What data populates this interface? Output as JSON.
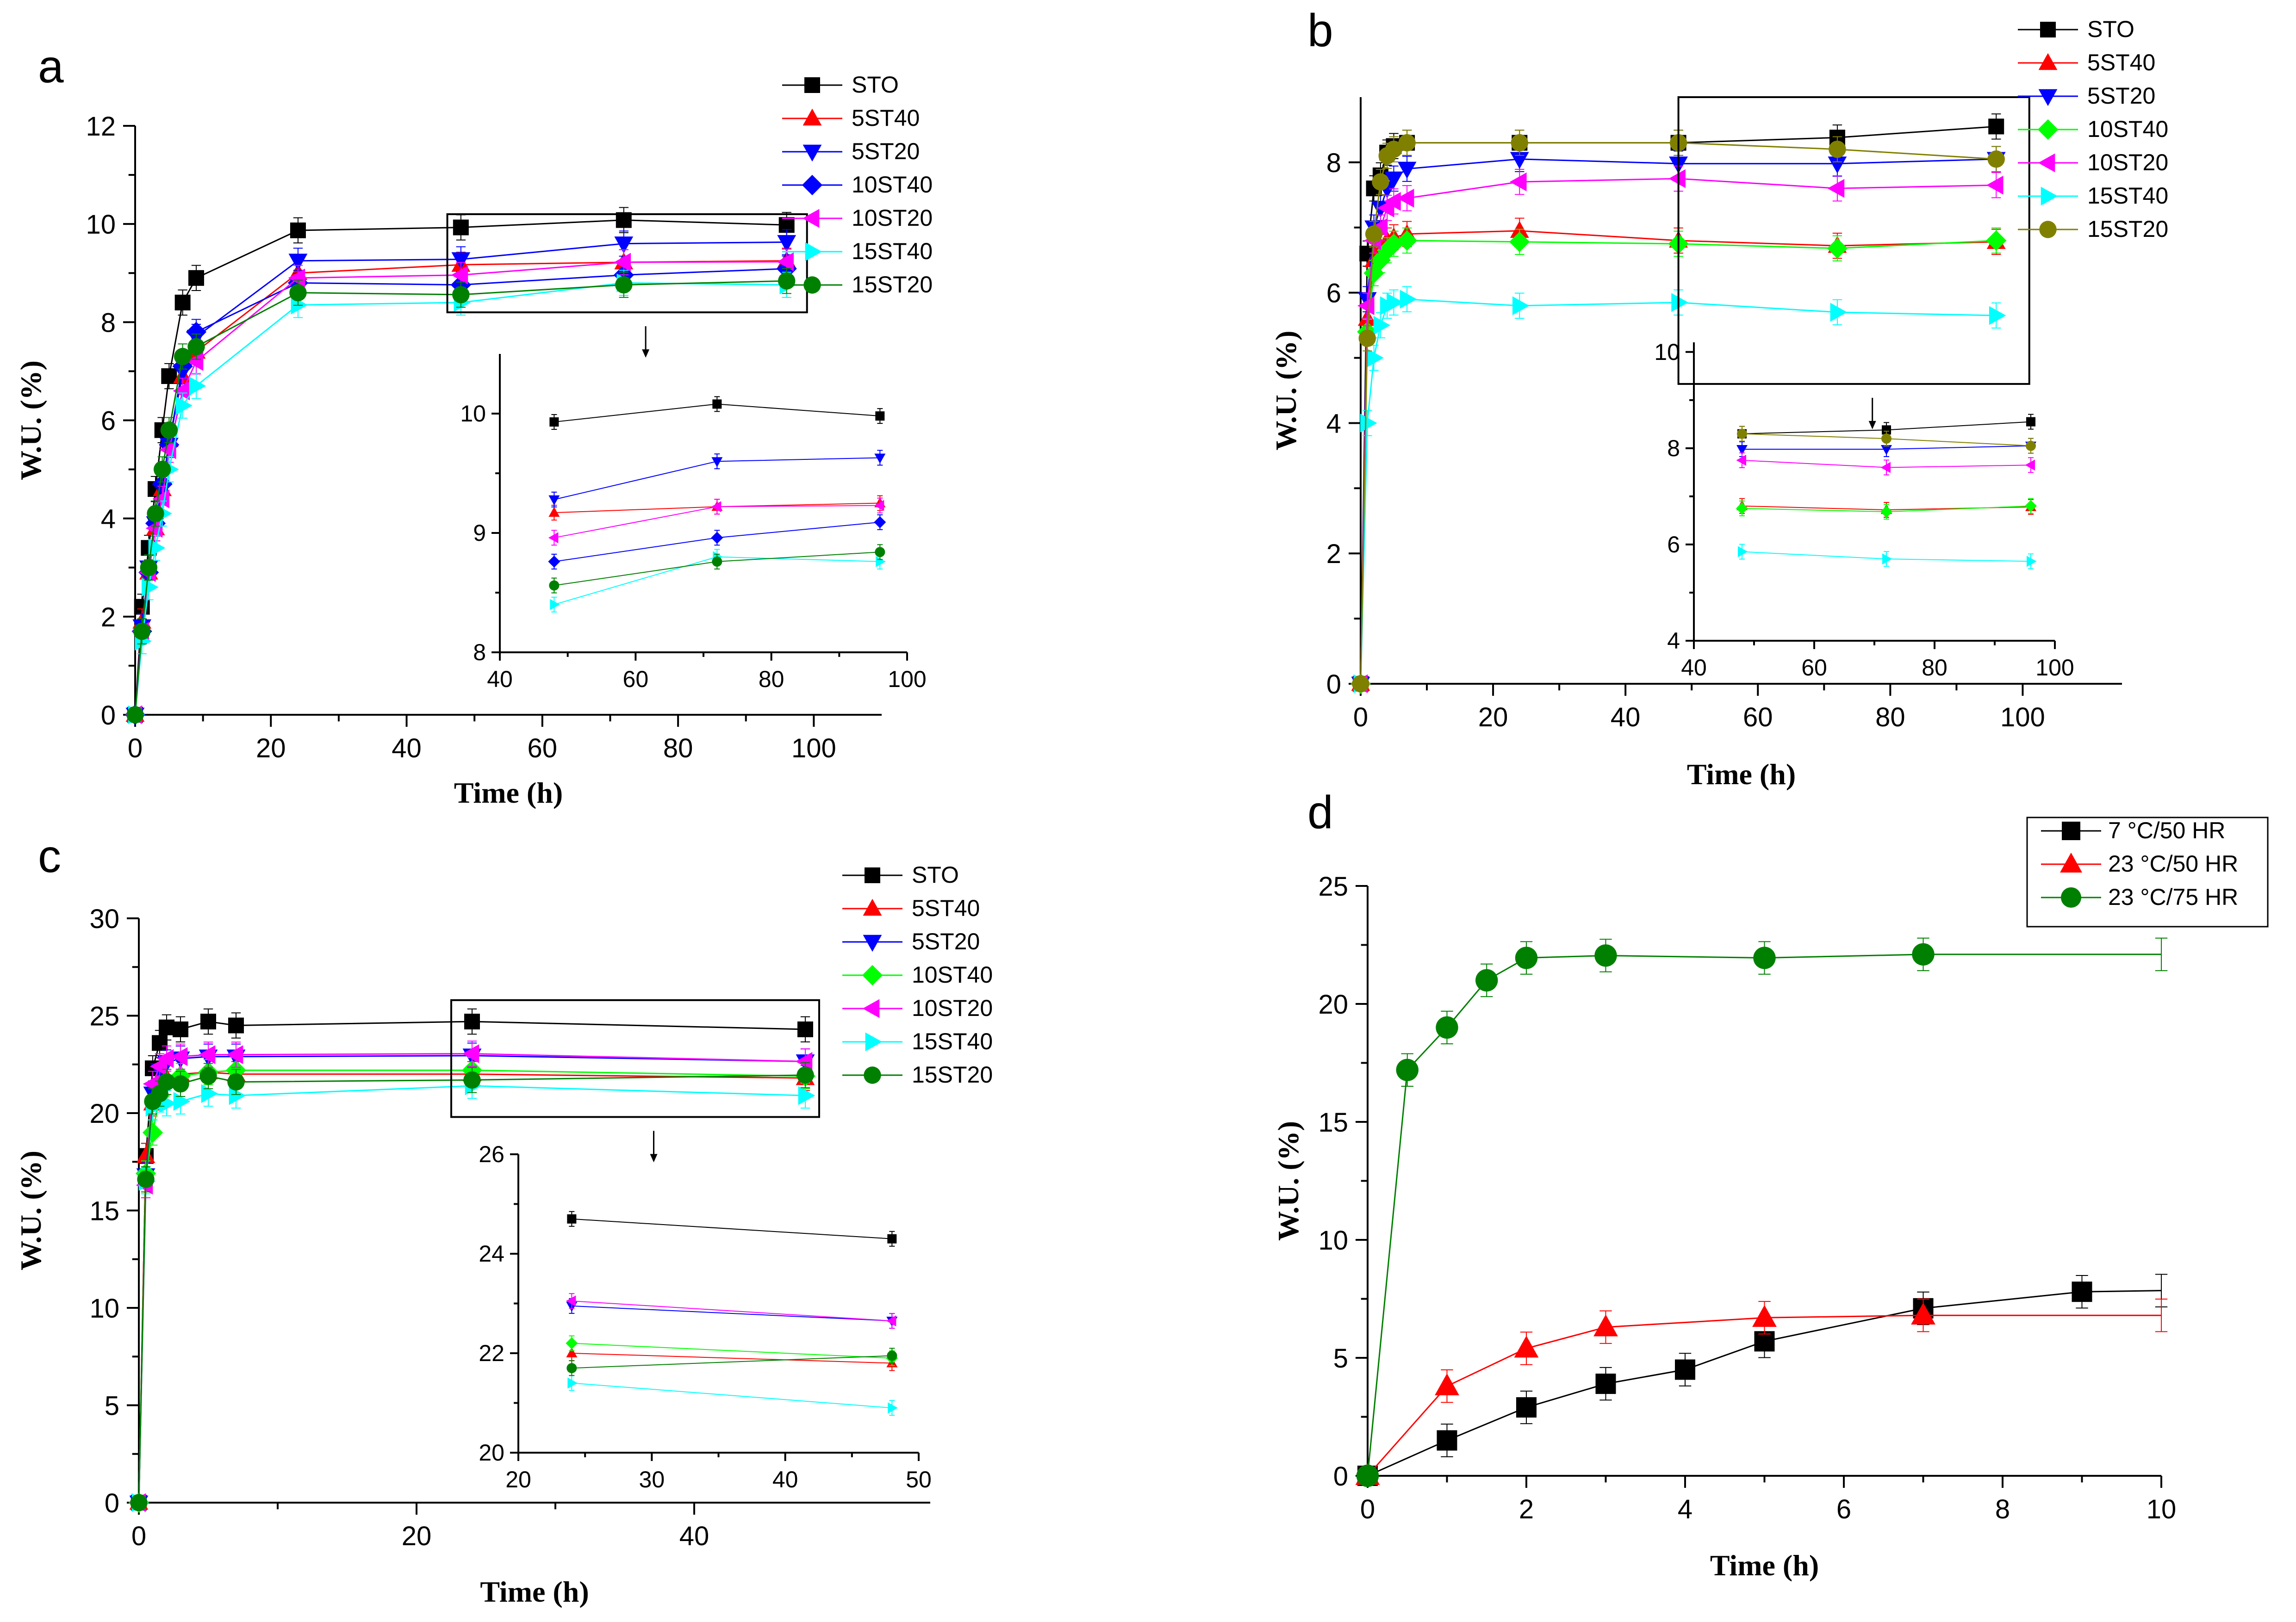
{
  "colors": {
    "STO": "#000000",
    "5ST40": "#ff0000",
    "5ST20": "#0000ff",
    "10ST40": "#00ff00",
    "10ST20": "#ff00ff",
    "15ST40": "#00ffff",
    "15ST20": "#008000",
    "15ST20_b": "#808000",
    "10ST40_a": "#0000ff",
    "Tdark": "#000000",
    "Tred": "#ff0000",
    "Tgreen": "#008000"
  },
  "chart_data": [
    {
      "id": "a",
      "type": "line",
      "panel_label": "a",
      "xlabel": "Time (h)",
      "ylabel": "W.U. (%)",
      "xlim": [
        0,
        110
      ],
      "ylim": [
        0,
        12
      ],
      "xticks": [
        "0",
        "20",
        "40",
        "60",
        "80",
        "100"
      ],
      "yticks": [
        "0",
        "2",
        "4",
        "6",
        "8",
        "10",
        "12"
      ],
      "xtick_values": [
        0,
        20,
        40,
        60,
        80,
        100
      ],
      "ytick_values": [
        0,
        2,
        4,
        6,
        8,
        10,
        12
      ],
      "legend": [
        "STO",
        "5ST40",
        "5ST20",
        "10ST40",
        "10ST20",
        "15ST40",
        "15ST20"
      ],
      "series": [
        {
          "name": "STO",
          "color": "#000000",
          "marker": "square",
          "x": [
            0,
            1,
            2,
            3,
            4,
            5,
            7,
            9,
            24,
            48,
            72,
            96
          ],
          "y": [
            0,
            2.2,
            3.4,
            4.6,
            5.8,
            6.9,
            8.4,
            8.9,
            9.87,
            9.93,
            10.08,
            9.98
          ]
        },
        {
          "name": "5ST40",
          "color": "#ff0000",
          "marker": "triangle-up",
          "x": [
            0,
            1,
            2,
            3,
            4,
            5,
            7,
            9,
            24,
            48,
            72,
            96
          ],
          "y": [
            0,
            1.9,
            2.9,
            3.8,
            4.6,
            5.6,
            6.9,
            7.4,
            9.0,
            9.17,
            9.22,
            9.25
          ]
        },
        {
          "name": "5ST20",
          "color": "#0000ff",
          "marker": "triangle-down",
          "x": [
            0,
            1,
            2,
            3,
            4,
            5,
            7,
            9,
            24,
            48,
            72,
            96
          ],
          "y": [
            0,
            1.8,
            3.0,
            3.9,
            4.6,
            5.5,
            7.0,
            7.7,
            9.25,
            9.28,
            9.6,
            9.63
          ]
        },
        {
          "name": "10ST40",
          "color": "#0000ff",
          "marker": "diamond",
          "x": [
            0,
            1,
            2,
            3,
            4,
            5,
            7,
            9,
            24,
            48,
            72,
            96
          ],
          "y": [
            0,
            1.7,
            2.9,
            3.9,
            4.7,
            5.5,
            7.1,
            7.8,
            8.8,
            8.76,
            8.96,
            9.09
          ]
        },
        {
          "name": "10ST20",
          "color": "#ff00ff",
          "marker": "triangle-left",
          "x": [
            0,
            1,
            2,
            3,
            4,
            5,
            7,
            9,
            24,
            48,
            72,
            96
          ],
          "y": [
            0,
            1.7,
            2.9,
            3.8,
            4.4,
            5.4,
            6.6,
            7.2,
            8.9,
            8.96,
            9.22,
            9.23
          ]
        },
        {
          "name": "15ST40",
          "color": "#00ffff",
          "marker": "triangle-right",
          "x": [
            0,
            1,
            2,
            3,
            4,
            5,
            7,
            9,
            24,
            48,
            72,
            96
          ],
          "y": [
            0,
            1.5,
            2.6,
            3.4,
            4.1,
            5.0,
            6.3,
            6.7,
            8.35,
            8.4,
            8.8,
            8.76
          ]
        },
        {
          "name": "15ST20",
          "color": "#008000",
          "marker": "circle",
          "x": [
            0,
            1,
            2,
            3,
            4,
            5,
            7,
            9,
            24,
            48,
            72,
            96
          ],
          "y": [
            0,
            1.7,
            3.0,
            4.1,
            5.0,
            5.8,
            7.3,
            7.5,
            8.6,
            8.56,
            8.76,
            8.84
          ]
        }
      ],
      "zoom_box": {
        "x": [
          46,
          99
        ],
        "y": [
          8.2,
          10.2
        ]
      },
      "inset": {
        "xlim": [
          40,
          100
        ],
        "ylim": [
          8,
          10.5
        ],
        "xticks": [
          "40",
          "60",
          "80",
          "100"
        ],
        "yticks": [
          "8",
          "9",
          "10"
        ],
        "xtick_values": [
          40,
          60,
          80,
          100
        ],
        "ytick_values": [
          8,
          9,
          10
        ]
      }
    },
    {
      "id": "b",
      "type": "line",
      "panel_label": "b",
      "xlabel": "Time (h)",
      "ylabel": "W.U. (%)",
      "xlim": [
        0,
        115
      ],
      "ylim": [
        0,
        9
      ],
      "xticks": [
        "0",
        "20",
        "40",
        "60",
        "80",
        "100"
      ],
      "yticks": [
        "0",
        "2",
        "4",
        "6",
        "8"
      ],
      "xtick_values": [
        0,
        20,
        40,
        60,
        80,
        100
      ],
      "ytick_values": [
        0,
        2,
        4,
        6,
        8
      ],
      "legend": [
        "STO",
        "5ST40",
        "5ST20",
        "10ST40",
        "10ST20",
        "15ST40",
        "15ST20"
      ],
      "series": [
        {
          "name": "STO",
          "color": "#000000",
          "marker": "square",
          "x": [
            0,
            1,
            2,
            3,
            4,
            5,
            7,
            24,
            48,
            72,
            96
          ],
          "y": [
            0,
            6.6,
            7.6,
            7.8,
            8.15,
            8.25,
            8.3,
            8.3,
            8.3,
            8.38,
            8.55
          ]
        },
        {
          "name": "5ST40",
          "color": "#ff0000",
          "marker": "triangle-up",
          "x": [
            0,
            1,
            2,
            3,
            4,
            5,
            7,
            24,
            48,
            72,
            96
          ],
          "y": [
            0,
            5.6,
            6.5,
            6.7,
            6.8,
            6.85,
            6.9,
            6.95,
            6.8,
            6.72,
            6.78
          ]
        },
        {
          "name": "5ST20",
          "color": "#0000ff",
          "marker": "triangle-down",
          "x": [
            0,
            1,
            2,
            3,
            4,
            5,
            7,
            24,
            48,
            72,
            96
          ],
          "y": [
            0,
            5.9,
            7.0,
            7.3,
            7.6,
            7.75,
            7.9,
            8.05,
            7.98,
            7.98,
            8.05
          ]
        },
        {
          "name": "10ST40",
          "color": "#00ff00",
          "marker": "diamond",
          "x": [
            0,
            1,
            2,
            3,
            4,
            5,
            7,
            24,
            48,
            72,
            96
          ],
          "y": [
            0,
            5.4,
            6.3,
            6.5,
            6.65,
            6.75,
            6.8,
            6.78,
            6.75,
            6.68,
            6.8
          ]
        },
        {
          "name": "10ST20",
          "color": "#ff00ff",
          "marker": "triangle-left",
          "x": [
            0,
            1,
            2,
            3,
            4,
            5,
            7,
            24,
            48,
            72,
            96
          ],
          "y": [
            0,
            5.8,
            6.8,
            7.0,
            7.3,
            7.4,
            7.45,
            7.7,
            7.75,
            7.6,
            7.65
          ]
        },
        {
          "name": "15ST40",
          "color": "#00ffff",
          "marker": "triangle-right",
          "x": [
            0,
            1,
            2,
            3,
            4,
            5,
            7,
            24,
            48,
            72,
            96
          ],
          "y": [
            0,
            4.0,
            5.0,
            5.5,
            5.8,
            5.85,
            5.9,
            5.8,
            5.85,
            5.7,
            5.65
          ]
        },
        {
          "name": "15ST20",
          "color": "#808000",
          "marker": "circle",
          "x": [
            0,
            1,
            2,
            3,
            4,
            5,
            7,
            24,
            48,
            72,
            96
          ],
          "y": [
            0,
            5.3,
            6.9,
            7.7,
            8.1,
            8.2,
            8.3,
            8.3,
            8.3,
            8.2,
            8.05
          ]
        }
      ],
      "zoom_box": {
        "x": [
          48,
          101
        ],
        "y": [
          4.6,
          9.0
        ]
      },
      "inset": {
        "xlim": [
          40,
          100
        ],
        "ylim": [
          4,
          10.2
        ],
        "xticks": [
          "40",
          "60",
          "80",
          "100"
        ],
        "yticks": [
          "4",
          "6",
          "8",
          "10"
        ],
        "xtick_values": [
          40,
          60,
          80,
          100
        ],
        "ytick_values": [
          4,
          6,
          8,
          10
        ]
      }
    },
    {
      "id": "c",
      "type": "line",
      "panel_label": "c",
      "xlabel": "Time (h)",
      "ylabel": "W.U. (%)",
      "xlim": [
        0,
        57
      ],
      "ylim": [
        0,
        30
      ],
      "xticks": [
        "0",
        "20",
        "40"
      ],
      "yticks": [
        "0",
        "5",
        "10",
        "15",
        "20",
        "25",
        "30"
      ],
      "xtick_values": [
        0,
        20,
        40
      ],
      "ytick_values": [
        0,
        5,
        10,
        15,
        20,
        25,
        30
      ],
      "legend": [
        "STO",
        "5ST40",
        "5ST20",
        "10ST40",
        "10ST20",
        "15ST40",
        "15ST20"
      ],
      "series": [
        {
          "name": "STO",
          "color": "#000000",
          "marker": "square",
          "x": [
            0,
            0.5,
            1,
            1.5,
            2,
            3,
            5,
            7,
            24,
            48
          ],
          "y": [
            0,
            17.8,
            22.3,
            23.6,
            24.4,
            24.3,
            24.7,
            24.5,
            24.7,
            24.3
          ]
        },
        {
          "name": "5ST40",
          "color": "#ff0000",
          "marker": "triangle-up",
          "x": [
            0,
            0.5,
            1,
            1.5,
            2,
            3,
            5,
            7,
            24,
            48
          ],
          "y": [
            0,
            17.8,
            20.5,
            21.3,
            21.8,
            22.0,
            22.1,
            22.0,
            22.0,
            21.8
          ]
        },
        {
          "name": "5ST20",
          "color": "#0000ff",
          "marker": "triangle-down",
          "x": [
            0,
            0.5,
            1,
            1.5,
            2,
            3,
            5,
            7,
            24,
            48
          ],
          "y": [
            0,
            16.8,
            21.0,
            22.2,
            22.6,
            22.8,
            22.9,
            22.9,
            22.95,
            22.65
          ]
        },
        {
          "name": "10ST40",
          "color": "#00ff00",
          "marker": "diamond",
          "x": [
            0,
            0.5,
            1,
            1.5,
            2,
            3,
            5,
            7,
            24,
            48
          ],
          "y": [
            0,
            16.9,
            19.0,
            20.9,
            21.6,
            21.9,
            22.1,
            22.2,
            22.2,
            21.9
          ]
        },
        {
          "name": "10ST20",
          "color": "#ff00ff",
          "marker": "triangle-left",
          "x": [
            0,
            0.5,
            1,
            1.5,
            2,
            3,
            5,
            7,
            24,
            48
          ],
          "y": [
            0,
            16.3,
            21.5,
            22.4,
            22.8,
            22.9,
            23.0,
            23.0,
            23.05,
            22.65
          ]
        },
        {
          "name": "15ST40",
          "color": "#00ffff",
          "marker": "triangle-right",
          "x": [
            0,
            0.5,
            1,
            1.5,
            2,
            3,
            5,
            7,
            24,
            48
          ],
          "y": [
            0,
            16.5,
            20.3,
            20.7,
            20.5,
            20.6,
            21.0,
            20.9,
            21.4,
            20.9
          ]
        },
        {
          "name": "15ST20",
          "color": "#008000",
          "marker": "circle",
          "x": [
            0,
            0.5,
            1,
            1.5,
            2,
            3,
            5,
            7,
            24,
            48
          ],
          "y": [
            0,
            16.6,
            20.6,
            21.0,
            21.6,
            21.5,
            21.9,
            21.6,
            21.7,
            21.95
          ]
        }
      ],
      "zoom_box": {
        "x": [
          22.5,
          49
        ],
        "y": [
          19.8,
          25.8
        ]
      },
      "inset": {
        "xlim": [
          20,
          50
        ],
        "ylim": [
          20,
          26
        ],
        "xticks": [
          "20",
          "30",
          "40",
          "50"
        ],
        "yticks": [
          "20",
          "22",
          "24",
          "26"
        ],
        "xtick_values": [
          20,
          30,
          40,
          50
        ],
        "ytick_values": [
          20,
          22,
          24,
          26
        ]
      }
    },
    {
      "id": "d",
      "type": "line",
      "panel_label": "d",
      "xlabel": "Time (h)",
      "ylabel": "W.U. (%)",
      "xlim": [
        0,
        10
      ],
      "ylim": [
        0,
        25
      ],
      "xticks": [
        "0",
        "2",
        "4",
        "6",
        "8",
        "10"
      ],
      "yticks": [
        "0",
        "5",
        "10",
        "15",
        "20",
        "25"
      ],
      "xtick_values": [
        0,
        2,
        4,
        6,
        8,
        10
      ],
      "ytick_values": [
        0,
        5,
        10,
        15,
        20,
        25
      ],
      "legend": [
        "7 °C/50 HR",
        "23 °C/50 HR",
        "23 °C/75 HR"
      ],
      "series": [
        {
          "name": "7 °C/50 HR",
          "color": "#000000",
          "marker": "square",
          "x": [
            0,
            1,
            2,
            3,
            4,
            5,
            7,
            9,
            10
          ],
          "y": [
            0,
            1.5,
            2.9,
            3.9,
            4.5,
            5.7,
            7.1,
            7.8,
            7.85
          ],
          "end_marker": false
        },
        {
          "name": "23 °C/50 HR",
          "color": "#ff0000",
          "marker": "triangle-up",
          "x": [
            0,
            1,
            2,
            3,
            5,
            7,
            10
          ],
          "y": [
            0,
            3.8,
            5.4,
            6.3,
            6.7,
            6.8,
            6.8
          ],
          "end_marker": false
        },
        {
          "name": "23 °C/75 HR",
          "color": "#008000",
          "marker": "circle",
          "x": [
            0,
            0.5,
            1,
            1.5,
            2,
            3,
            5,
            7,
            10
          ],
          "y": [
            0,
            17.2,
            19.0,
            21.0,
            21.95,
            22.05,
            21.95,
            22.1,
            22.1
          ],
          "end_marker": false
        }
      ]
    }
  ]
}
